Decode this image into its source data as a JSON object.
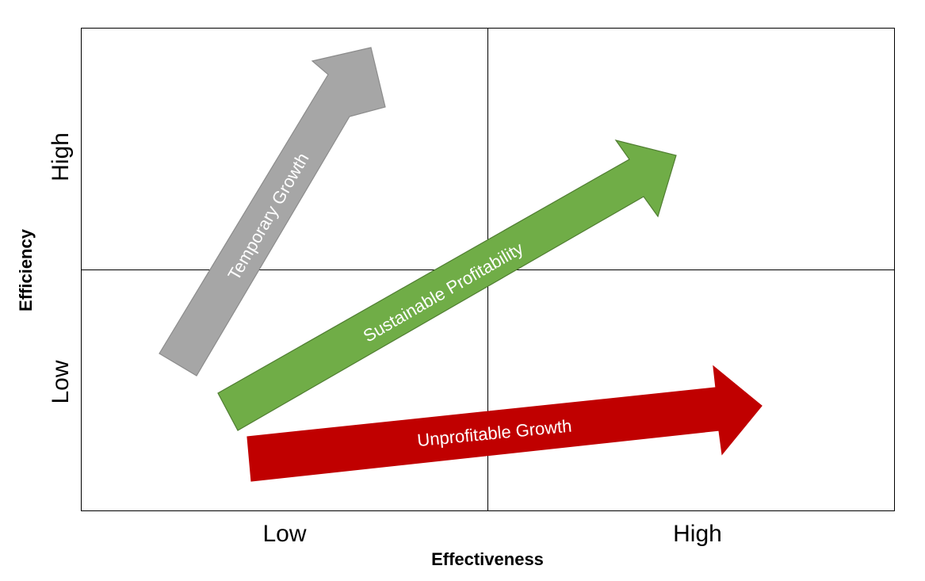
{
  "x_axis": {
    "title": "Effectiveness",
    "low_label": "Low",
    "high_label": "High"
  },
  "y_axis": {
    "title": "Efficiency",
    "low_label": "Low",
    "high_label": "High"
  },
  "arrows": {
    "temporary_growth": {
      "label": "Temporary Growth",
      "color": "#a6a6a6",
      "border": "#8c8c8c"
    },
    "sustainable_profitability": {
      "label": "Sustainable Profitability",
      "color": "#70ad47",
      "border": "#507e32"
    },
    "unprofitable_growth": {
      "label": "Unprofitable Growth",
      "color": "#c00000",
      "border": "#c00000"
    }
  },
  "grid_color": "#000000"
}
